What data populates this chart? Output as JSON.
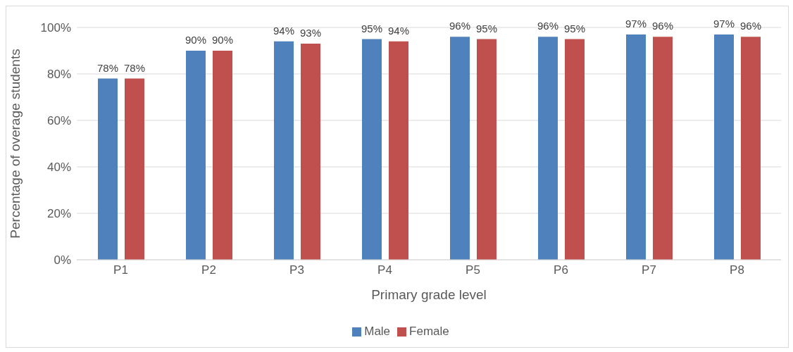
{
  "chart_data": {
    "type": "bar",
    "xlabel": "Primary grade level",
    "ylabel": "Percentage of overage students",
    "categories": [
      "P1",
      "P2",
      "P3",
      "P4",
      "P5",
      "P6",
      "P7",
      "P8"
    ],
    "series": [
      {
        "name": "Male",
        "color": "#4f81bd",
        "values": [
          78,
          90,
          94,
          95,
          96,
          96,
          97,
          97
        ],
        "value_labels": [
          "78%",
          "90%",
          "94%",
          "95%",
          "96%",
          "96%",
          "97%",
          "97%"
        ]
      },
      {
        "name": "Female",
        "color": "#c0504d",
        "values": [
          78,
          90,
          93,
          94,
          95,
          95,
          96,
          96
        ],
        "value_labels": [
          "78%",
          "90%",
          "93%",
          "94%",
          "95%",
          "95%",
          "96%",
          "96%"
        ]
      }
    ],
    "ylim": [
      0,
      100
    ],
    "yticks": [
      {
        "value": 0,
        "label": "0%"
      },
      {
        "value": 20,
        "label": "20%"
      },
      {
        "value": 40,
        "label": "40%"
      },
      {
        "value": 60,
        "label": "60%"
      },
      {
        "value": 80,
        "label": "80%"
      },
      {
        "value": 100,
        "label": "100%"
      }
    ],
    "grid": "y",
    "legend": "bottom"
  }
}
